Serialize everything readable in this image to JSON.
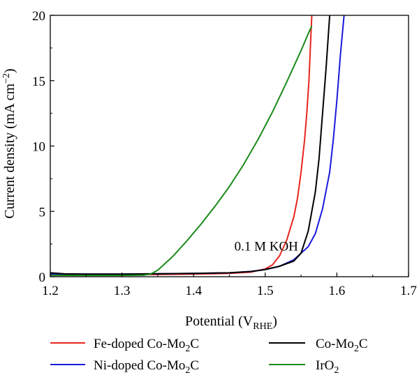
{
  "chart_data": {
    "type": "line",
    "xlabel": "Potential (V",
    "xlabel_sub": "RHE",
    "xlabel_tail": ")",
    "ylabel": "Current density (mA cm",
    "ylabel_sup": "−2",
    "ylabel_tail": ")",
    "xlim": [
      1.2,
      1.7
    ],
    "ylim": [
      0,
      20
    ],
    "xticks": [
      1.2,
      1.3,
      1.4,
      1.5,
      1.6,
      1.7
    ],
    "yticks": [
      0,
      5,
      10,
      15,
      20
    ],
    "xtick_labels": [
      "1.2",
      "1.3",
      "1.4",
      "1.5",
      "1.6",
      "1.7"
    ],
    "ytick_labels": [
      "0",
      "5",
      "10",
      "15",
      "20"
    ],
    "grid": false,
    "legend_position": "below",
    "annotations": [
      {
        "text": "0.1 M KOH",
        "x": 1.53,
        "y": 2.0
      }
    ],
    "series": [
      {
        "name": "Fe-doped Co-Mo",
        "name_sub": "2",
        "name_tail": "C",
        "color": "#e8251f",
        "points": [
          [
            1.2,
            0.15
          ],
          [
            1.3,
            0.15
          ],
          [
            1.4,
            0.2
          ],
          [
            1.45,
            0.25
          ],
          [
            1.48,
            0.35
          ],
          [
            1.5,
            0.6
          ],
          [
            1.51,
            0.9
          ],
          [
            1.52,
            1.6
          ],
          [
            1.53,
            2.8
          ],
          [
            1.54,
            4.6
          ],
          [
            1.545,
            6.0
          ],
          [
            1.55,
            8.0
          ],
          [
            1.555,
            10.5
          ],
          [
            1.558,
            12.5
          ],
          [
            1.561,
            15.0
          ],
          [
            1.563,
            17.5
          ],
          [
            1.565,
            20.0
          ]
        ]
      },
      {
        "name": "Ni-doped Co-Mo",
        "name_sub": "2",
        "name_tail": "C",
        "color": "#1a1adc",
        "points": [
          [
            1.2,
            0.2
          ],
          [
            1.3,
            0.2
          ],
          [
            1.4,
            0.25
          ],
          [
            1.45,
            0.3
          ],
          [
            1.48,
            0.4
          ],
          [
            1.5,
            0.55
          ],
          [
            1.52,
            0.8
          ],
          [
            1.54,
            1.3
          ],
          [
            1.56,
            2.3
          ],
          [
            1.57,
            3.3
          ],
          [
            1.58,
            5.2
          ],
          [
            1.59,
            8.0
          ],
          [
            1.595,
            10.5
          ],
          [
            1.6,
            13.5
          ],
          [
            1.605,
            17.0
          ],
          [
            1.61,
            20.0
          ]
        ]
      },
      {
        "name": "Co-Mo",
        "name_sub": "2",
        "name_tail": "C",
        "color": "#000000",
        "points": [
          [
            1.2,
            0.3
          ],
          [
            1.22,
            0.22
          ],
          [
            1.25,
            0.2
          ],
          [
            1.3,
            0.2
          ],
          [
            1.4,
            0.25
          ],
          [
            1.45,
            0.3
          ],
          [
            1.48,
            0.4
          ],
          [
            1.5,
            0.55
          ],
          [
            1.52,
            0.8
          ],
          [
            1.54,
            1.2
          ],
          [
            1.55,
            1.8
          ],
          [
            1.56,
            3.5
          ],
          [
            1.57,
            6.5
          ],
          [
            1.575,
            9.0
          ],
          [
            1.58,
            12.5
          ],
          [
            1.585,
            16.0
          ],
          [
            1.59,
            20.0
          ]
        ]
      },
      {
        "name": "IrO",
        "name_sub": "2",
        "name_tail": "",
        "color": "#1b8a1b",
        "points": [
          [
            1.2,
            0.1
          ],
          [
            1.3,
            0.1
          ],
          [
            1.33,
            0.12
          ],
          [
            1.34,
            0.2
          ],
          [
            1.35,
            0.5
          ],
          [
            1.37,
            1.5
          ],
          [
            1.39,
            2.7
          ],
          [
            1.41,
            4.0
          ],
          [
            1.43,
            5.4
          ],
          [
            1.45,
            6.9
          ],
          [
            1.47,
            8.6
          ],
          [
            1.49,
            10.5
          ],
          [
            1.51,
            12.6
          ],
          [
            1.53,
            14.9
          ],
          [
            1.55,
            17.3
          ],
          [
            1.56,
            18.6
          ],
          [
            1.565,
            19.2
          ]
        ]
      }
    ]
  }
}
